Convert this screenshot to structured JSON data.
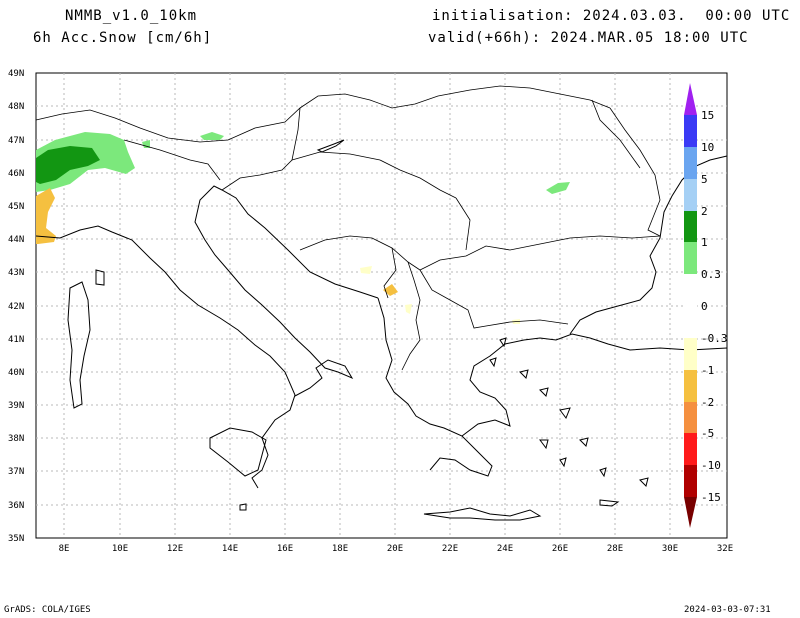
{
  "header": {
    "model": "NMMB_v1.0_10km",
    "variable": "6h Acc.Snow [cm/6h]",
    "init": "initialisation: 2024.03.03.  00:00 UTC",
    "valid": "valid(+66h): 2024.MAR.05 18:00 UTC"
  },
  "footer": {
    "credit": "GrADS: COLA/IGES",
    "timestamp": "2024-03-03-07:31"
  },
  "axes": {
    "lat_labels": [
      "49N",
      "48N",
      "47N",
      "46N",
      "45N",
      "44N",
      "43N",
      "42N",
      "41N",
      "40N",
      "39N",
      "38N",
      "37N",
      "36N",
      "35N"
    ],
    "lon_labels": [
      "8E",
      "10E",
      "12E",
      "14E",
      "16E",
      "18E",
      "20E",
      "22E",
      "24E",
      "26E",
      "28E",
      "30E",
      "32E"
    ]
  },
  "colorbar": {
    "labels": [
      "15",
      "10",
      "5",
      "2",
      "1",
      "0.3",
      "0",
      "-0.3",
      "-1",
      "-2",
      "-5",
      "-10",
      "-15"
    ],
    "colors": [
      "#a020f0",
      "#3a3af5",
      "#6aa5f0",
      "#a5d0f5",
      "#129612",
      "#7ce87c",
      "#ffffff",
      "#ffffc8",
      "#f5c040",
      "#f59040",
      "#ff1a1a",
      "#b00000",
      "#780000"
    ]
  }
}
